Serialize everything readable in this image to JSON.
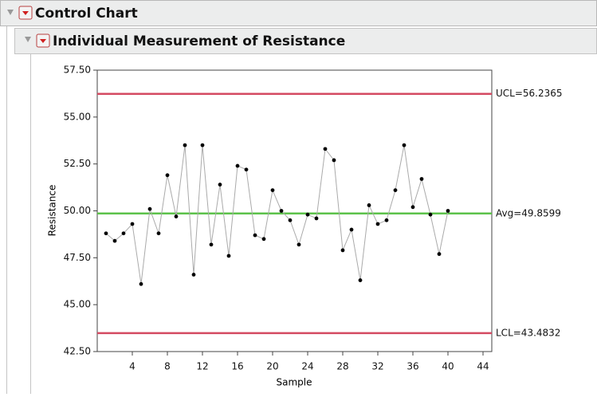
{
  "header": {
    "title": "Control Chart"
  },
  "chart_data": {
    "type": "line",
    "title": "Individual Measurement of Resistance",
    "x_label": "Sample",
    "y_label": "Resistance",
    "x": [
      1,
      2,
      3,
      4,
      5,
      6,
      7,
      8,
      9,
      10,
      11,
      12,
      13,
      14,
      15,
      16,
      17,
      18,
      19,
      20,
      21,
      22,
      23,
      24,
      25,
      26,
      27,
      28,
      29,
      30,
      31,
      32,
      33,
      34,
      35,
      36,
      37,
      38,
      39,
      40
    ],
    "series": [
      {
        "color": "#aaaaaa",
        "values": [
          48.8,
          48.4,
          48.8,
          49.3,
          46.1,
          50.1,
          48.8,
          51.9,
          49.7,
          53.5,
          46.6,
          53.5,
          48.2,
          51.4,
          47.6,
          52.4,
          52.2,
          48.7,
          48.5,
          51.1,
          50.0,
          49.5,
          48.2,
          49.8,
          49.6,
          53.3,
          52.7,
          47.9,
          49.0,
          46.3,
          50.3,
          49.3,
          49.5,
          51.1,
          53.5,
          50.2,
          51.7,
          49.8,
          47.7,
          50.0
        ]
      }
    ],
    "limits": [
      {
        "label": "UCL=56.2365",
        "value": 56.2365,
        "color": "#d44a62"
      },
      {
        "label": "Avg=49.8599",
        "value": 49.8599,
        "color": "#5cc24a"
      },
      {
        "label": "LCL=43.4832",
        "value": 43.4832,
        "color": "#d44a62"
      }
    ],
    "xlim": [
      0,
      45
    ],
    "xticks": [
      4,
      8,
      12,
      16,
      20,
      24,
      28,
      32,
      36,
      40,
      44
    ],
    "ylim": [
      42.5,
      57.5
    ],
    "yticks": [
      {
        "value": 42.5,
        "label": "42.50"
      },
      {
        "value": 45,
        "label": "45.00"
      },
      {
        "value": 47.5,
        "label": "47.50"
      },
      {
        "value": 50,
        "label": "50.00"
      },
      {
        "value": 52.5,
        "label": "52.50"
      },
      {
        "value": 55,
        "label": "55.00"
      },
      {
        "value": 57.5,
        "label": "57.50"
      }
    ]
  }
}
